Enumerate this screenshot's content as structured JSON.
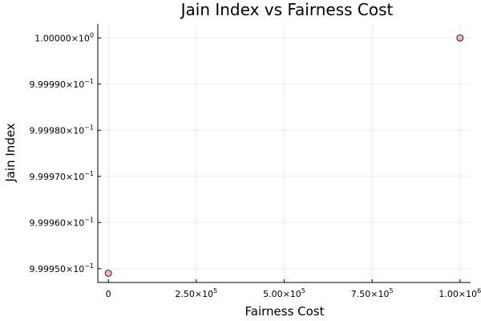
{
  "chart_data": {
    "type": "scatter",
    "title": "Jain Index vs Fairness Cost",
    "xlabel": "Fairness Cost",
    "ylabel": "Jain Index",
    "grid": true,
    "legend": "none",
    "xlim": [
      -30000,
      1030000
    ],
    "ylim": [
      0.999947,
      1.000003
    ],
    "x_ticks": [
      {
        "value": 0,
        "mantissa": "0",
        "exponent": ""
      },
      {
        "value": 250000,
        "mantissa": "2.50×10",
        "exponent": "5"
      },
      {
        "value": 500000,
        "mantissa": "5.00×10",
        "exponent": "5"
      },
      {
        "value": 750000,
        "mantissa": "7.50×10",
        "exponent": "5"
      },
      {
        "value": 1000000,
        "mantissa": "1.00×10",
        "exponent": "6"
      }
    ],
    "y_ticks": [
      {
        "value": 0.99995,
        "mantissa": "9.99950×10",
        "exponent": "−1"
      },
      {
        "value": 0.99996,
        "mantissa": "9.99960×10",
        "exponent": "−1"
      },
      {
        "value": 0.99997,
        "mantissa": "9.99970×10",
        "exponent": "−1"
      },
      {
        "value": 0.99998,
        "mantissa": "9.99980×10",
        "exponent": "−1"
      },
      {
        "value": 0.99999,
        "mantissa": "9.99990×10",
        "exponent": "−1"
      },
      {
        "value": 1.0,
        "mantissa": "1.00000×10",
        "exponent": "0"
      }
    ],
    "series": [
      {
        "color": "#f4b6b6",
        "points": [
          {
            "x": 0,
            "y": 0.999949
          },
          {
            "x": 1000000,
            "y": 1.0
          }
        ]
      }
    ]
  }
}
